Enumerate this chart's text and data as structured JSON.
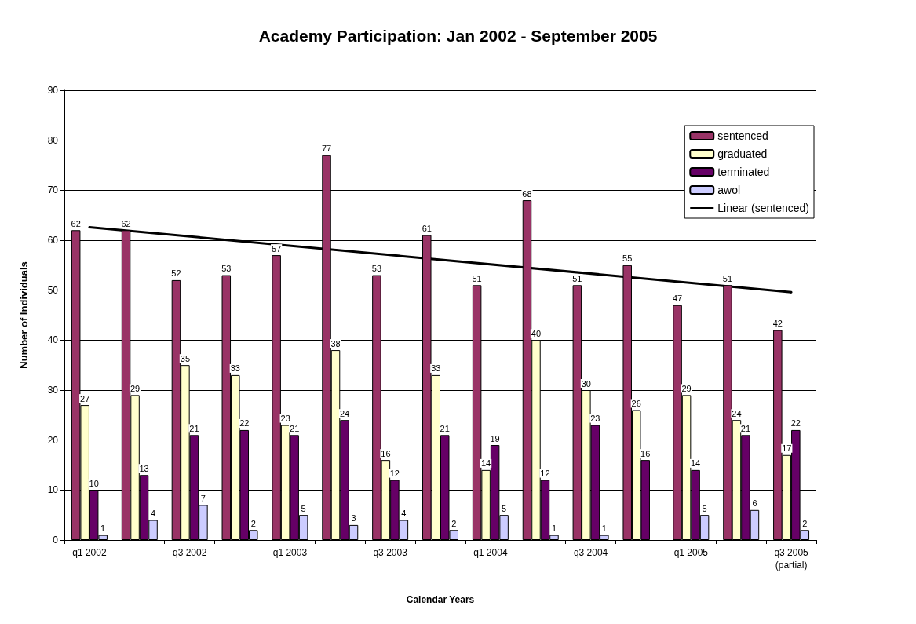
{
  "chart_data": {
    "type": "bar",
    "title": "Academy Participation: Jan 2002 - September 2005",
    "xlabel": "Calendar Years",
    "ylabel": "Number of Individuals",
    "categories": [
      "q1 2002",
      null,
      "q3 2002",
      null,
      "q1 2003",
      null,
      "q3 2003",
      null,
      "q1 2004",
      null,
      "q3 2004",
      null,
      "q1 2005",
      null,
      "q3 2005\n(partial)"
    ],
    "series": [
      {
        "name": "sentenced",
        "color": "#993366",
        "values": [
          62,
          62,
          52,
          53,
          57,
          77,
          53,
          61,
          51,
          68,
          51,
          55,
          47,
          51,
          42
        ]
      },
      {
        "name": "graduated",
        "color": "#ffffcc",
        "values": [
          27,
          29,
          35,
          33,
          23,
          38,
          16,
          33,
          14,
          40,
          30,
          26,
          29,
          24,
          17
        ]
      },
      {
        "name": "terminated",
        "color": "#660066",
        "values": [
          10,
          13,
          21,
          22,
          21,
          24,
          12,
          21,
          19,
          12,
          23,
          16,
          14,
          21,
          22
        ]
      },
      {
        "name": "awol",
        "color": "#ccccff",
        "values": [
          1,
          4,
          7,
          2,
          5,
          3,
          4,
          2,
          5,
          1,
          1,
          null,
          5,
          6,
          2
        ]
      },
      {
        "name": "Linear (sentenced)",
        "type": "line",
        "color": "#000000",
        "values": [
          62.6,
          null,
          null,
          null,
          null,
          null,
          null,
          null,
          null,
          null,
          null,
          null,
          null,
          null,
          49.6
        ],
        "value_labels": [
          null,
          null,
          null,
          null,
          null,
          null,
          null,
          null,
          null,
          null,
          null,
          null,
          null,
          null,
          null
        ]
      }
    ],
    "ylim": [
      0,
      90
    ],
    "yticks": [
      0,
      10,
      20,
      30,
      40,
      50,
      60,
      70,
      80,
      90
    ],
    "grid": "y",
    "legend": "top right",
    "data_labels": true
  }
}
